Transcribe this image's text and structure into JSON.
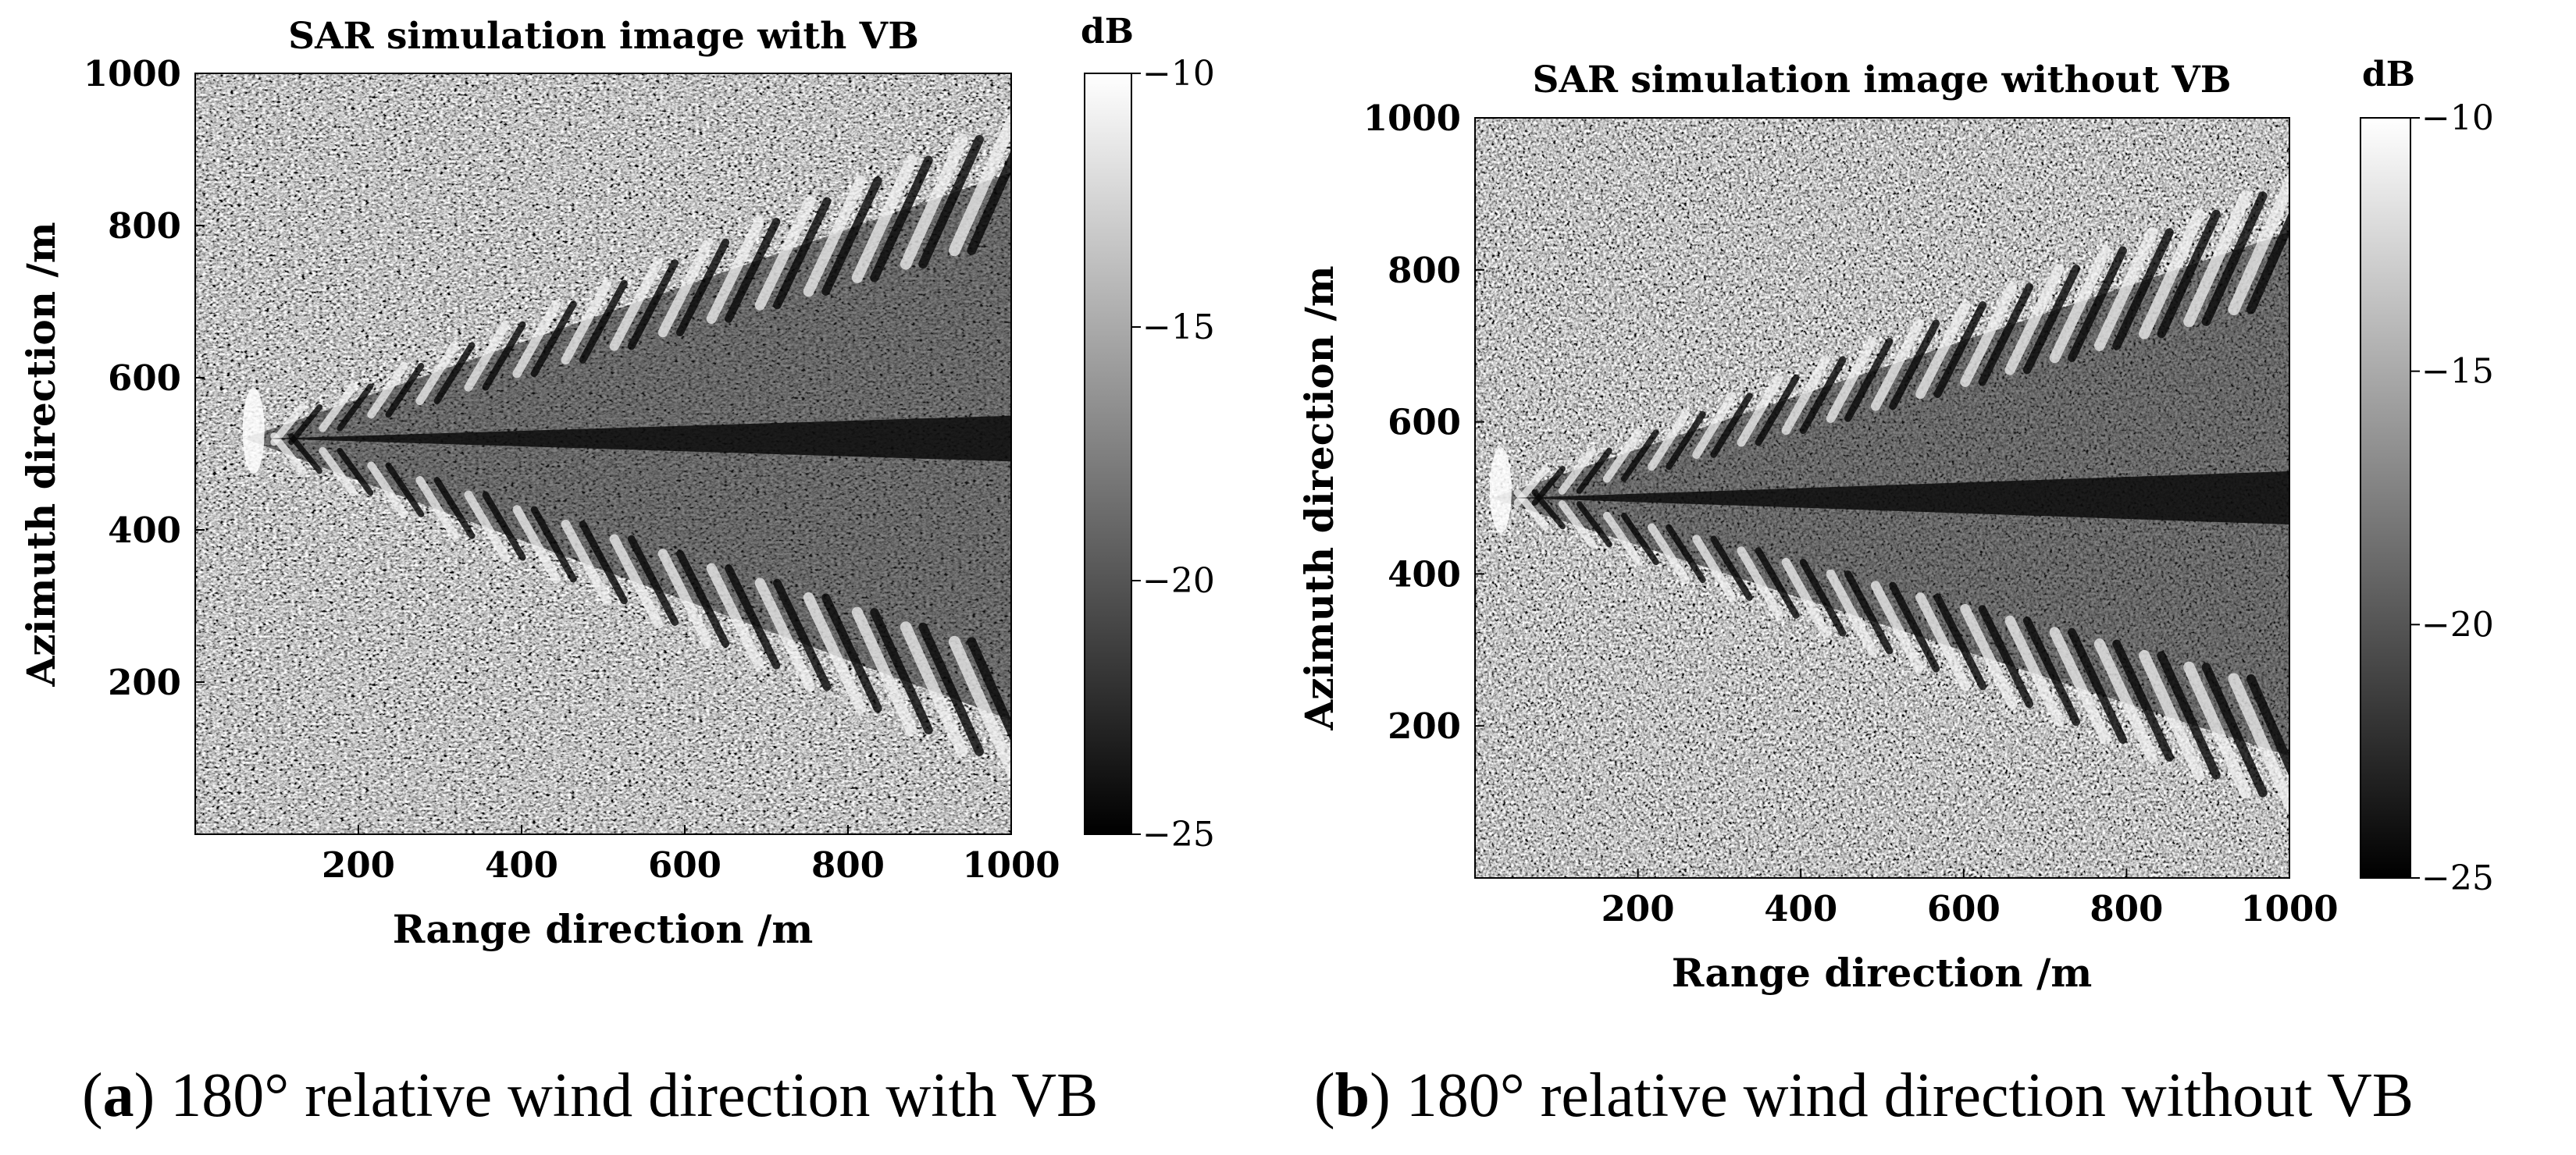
{
  "figure": {
    "captions": [
      {
        "label": "a",
        "text": "180° relative wind direction with VB"
      },
      {
        "label": "b",
        "text": "180° relative wind direction without VB"
      }
    ]
  },
  "colormap": {
    "low": "#000000",
    "high": "#ffffff"
  },
  "chart_data": [
    {
      "type": "heatmap",
      "title": "SAR simulation image with VB",
      "xlabel": "Range direction /m",
      "ylabel": "Azimuth direction /m",
      "xlim": [
        0,
        1000
      ],
      "ylim": [
        0,
        1000
      ],
      "xticks": [
        200,
        400,
        600,
        800,
        1000
      ],
      "yticks": [
        200,
        400,
        600,
        800,
        1000
      ],
      "colorbar": {
        "label": "dB",
        "min": -25,
        "max": -10,
        "ticks": [
          -10,
          -15,
          -20,
          -25
        ]
      },
      "features": {
        "wake_apex_range_m": 60,
        "wake_center_azimuth_m": 520,
        "wake_upper_edge_at_1000m": 880,
        "wake_lower_edge_at_1000m": 140,
        "centerline_dark_strip_width_m": 60,
        "wave_crest_count": 15
      }
    },
    {
      "type": "heatmap",
      "title": "SAR simulation image without VB",
      "xlabel": "Range direction /m",
      "ylabel": "Azimuth direction /m",
      "xlim": [
        0,
        1000
      ],
      "ylim": [
        0,
        1000
      ],
      "xticks": [
        200,
        400,
        600,
        800,
        1000
      ],
      "yticks": [
        200,
        400,
        600,
        800,
        1000
      ],
      "colorbar": {
        "label": "dB",
        "min": -25,
        "max": -10,
        "ticks": [
          -10,
          -15,
          -20,
          -25
        ]
      },
      "features": {
        "wake_apex_range_m": 20,
        "wake_center_azimuth_m": 500,
        "wake_upper_edge_at_1000m": 860,
        "wake_lower_edge_at_1000m": 150,
        "centerline_dark_strip_width_m": 70,
        "wave_crest_count": 17
      }
    }
  ]
}
